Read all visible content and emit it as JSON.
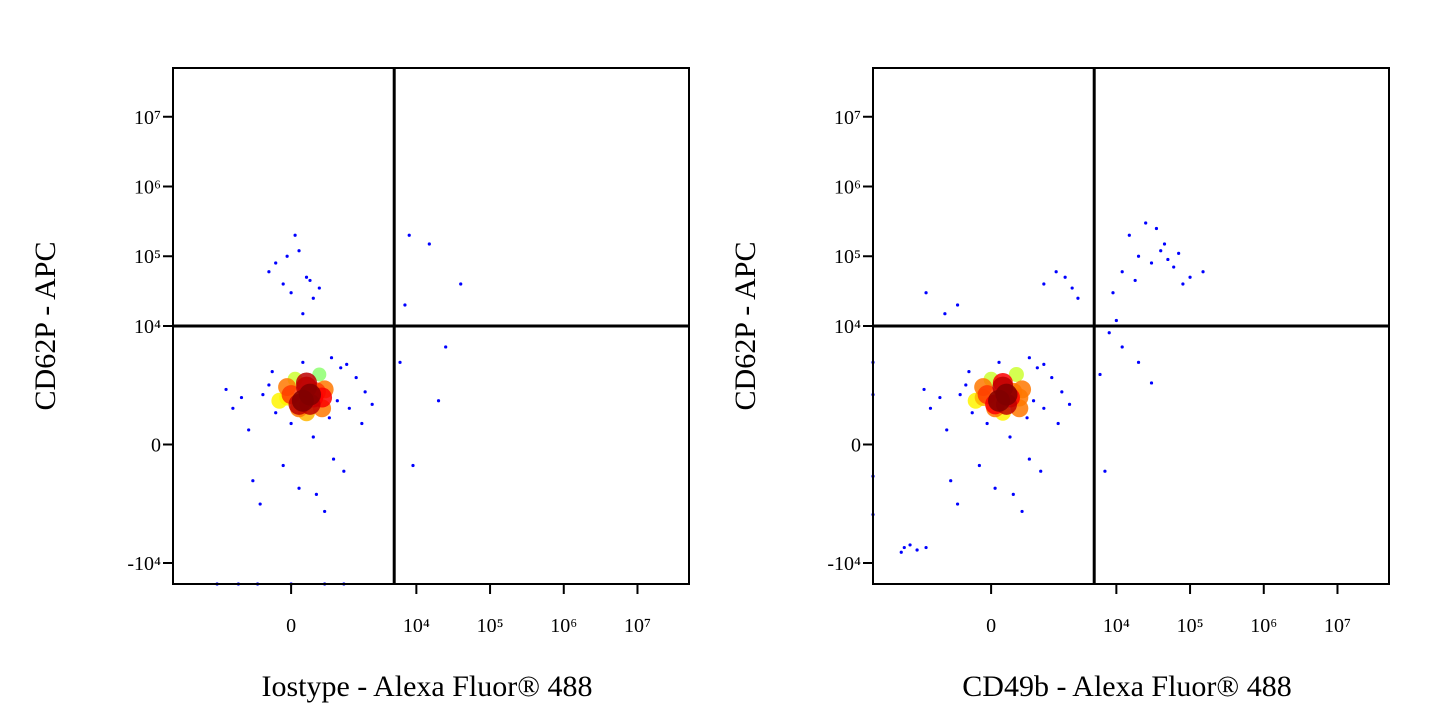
{
  "chart_data": [
    {
      "type": "scatter",
      "xlabel": "Iostype - Alexa Fluor® 488",
      "ylabel": "CD62P - APC",
      "xscale": "biexponential",
      "yscale": "biexponential",
      "xlim": [
        -8000,
        50000000
      ],
      "ylim": [
        -20000,
        50000000
      ],
      "xticks": [
        0,
        {
          "value": 10000,
          "label": "10⁴"
        },
        {
          "value": 100000,
          "label": "10⁵"
        },
        {
          "value": 1000000,
          "label": "10⁶"
        },
        {
          "value": 10000000,
          "label": "10⁷"
        }
      ],
      "yticks": [
        {
          "value": -10000,
          "label": "-10⁴"
        },
        0,
        {
          "value": 10000,
          "label": "10⁴"
        },
        {
          "value": 100000,
          "label": "10⁵"
        },
        {
          "value": 1000000,
          "label": "10⁶"
        },
        {
          "value": 10000000,
          "label": "10⁷"
        }
      ],
      "gates": {
        "x": 5000,
        "y": 10000
      },
      "x": [
        100,
        300,
        -200,
        500,
        0,
        800,
        -400,
        200,
        1200,
        -700,
        400,
        -100,
        600,
        1500,
        -900,
        300,
        900,
        -300,
        2000,
        100,
        -1200,
        700,
        250,
        -50,
        1100,
        450,
        -600,
        150,
        1800,
        -250,
        350,
        50,
        650,
        -450,
        2500,
        -1500,
        1000,
        200,
        -150,
        500,
        150,
        350,
        -50,
        250,
        0,
        450,
        200,
        100,
        0,
        200,
        -200,
        100,
        -100,
        300,
        50,
        -300,
        400,
        150,
        -50,
        250,
        8000,
        15000,
        40000,
        6000,
        20000,
        9000,
        7000,
        25000,
        -2000,
        -1000,
        0,
        500,
        1000,
        -500
      ],
      "values": [
        700,
        900,
        500,
        1200,
        300,
        800,
        1000,
        1500,
        600,
        200,
        2000,
        -300,
        400,
        1800,
        900,
        100,
        2500,
        1400,
        1100,
        -800,
        600,
        -200,
        1000,
        1300,
        2800,
        600,
        -600,
        3000,
        300,
        2200,
        -1000,
        1700,
        3500,
        -1400,
        700,
        1200,
        -400,
        500,
        800,
        -1800,
        800,
        1100,
        900,
        700,
        1000,
        900,
        1300,
        600,
        30000,
        50000,
        80000,
        120000,
        40000,
        25000,
        200000,
        60000,
        35000,
        15000,
        100000,
        45000,
        200000,
        150000,
        40000,
        3000,
        800,
        -300,
        20000,
        5000,
        -20000,
        -20000,
        -20000,
        -20000,
        -20000,
        -20000
      ]
    },
    {
      "type": "scatter",
      "xlabel": "CD49b - Alexa Fluor® 488",
      "ylabel": "CD62P - APC",
      "xscale": "biexponential",
      "yscale": "biexponential",
      "xlim": [
        -8000,
        50000000
      ],
      "ylim": [
        -20000,
        50000000
      ],
      "xticks": [
        0,
        {
          "value": 10000,
          "label": "10⁴"
        },
        {
          "value": 100000,
          "label": "10⁵"
        },
        {
          "value": 1000000,
          "label": "10⁶"
        },
        {
          "value": 10000000,
          "label": "10⁷"
        }
      ],
      "yticks": [
        {
          "value": -10000,
          "label": "-10⁴"
        },
        0,
        {
          "value": 10000,
          "label": "10⁴"
        },
        {
          "value": 100000,
          "label": "10⁵"
        },
        {
          "value": 1000000,
          "label": "10⁶"
        },
        {
          "value": 10000000,
          "label": "10⁷"
        }
      ],
      "gates": {
        "x": 5000,
        "y": 10000
      },
      "x": [
        50,
        250,
        -250,
        450,
        -50,
        700,
        -450,
        150,
        1000,
        -750,
        350,
        -150,
        550,
        1300,
        -950,
        250,
        800,
        -350,
        1800,
        50,
        -1300,
        600,
        200,
        -100,
        1000,
        400,
        -650,
        100,
        1600,
        -300,
        300,
        0,
        600,
        -500,
        2300,
        -1600,
        900,
        150,
        -200,
        450,
        100,
        300,
        -100,
        200,
        -50,
        400,
        150,
        50,
        -1500,
        -500,
        1000,
        2000,
        3000,
        -800,
        1500,
        2500,
        12000,
        20000,
        30000,
        45000,
        60000,
        80000,
        15000,
        25000,
        40000,
        100000,
        35000,
        50000,
        9000,
        18000,
        70000,
        150000,
        8000,
        12000,
        20000,
        6000,
        10000,
        30000,
        7000,
        -3000,
        -2500,
        -2000,
        -1500,
        -3300,
        -8000,
        -8000,
        -8000,
        -8000
      ],
      "values": [
        700,
        900,
        500,
        1200,
        300,
        800,
        1000,
        1500,
        600,
        200,
        2000,
        -300,
        400,
        1800,
        900,
        100,
        2500,
        1400,
        1100,
        -800,
        600,
        -200,
        1000,
        1300,
        2800,
        600,
        -600,
        3000,
        300,
        2200,
        -1000,
        1700,
        3500,
        -1400,
        700,
        1200,
        -400,
        500,
        800,
        -1800,
        800,
        1100,
        900,
        700,
        1000,
        900,
        1300,
        600,
        30000,
        20000,
        40000,
        50000,
        25000,
        15000,
        60000,
        35000,
        60000,
        100000,
        80000,
        150000,
        70000,
        40000,
        200000,
        300000,
        120000,
        50000,
        250000,
        90000,
        30000,
        45000,
        110000,
        60000,
        8000,
        5000,
        3000,
        2000,
        12000,
        1500,
        -400,
        -6000,
        -5500,
        -6500,
        -6000,
        -7000,
        1000,
        -500,
        -2000,
        3000
      ]
    }
  ]
}
